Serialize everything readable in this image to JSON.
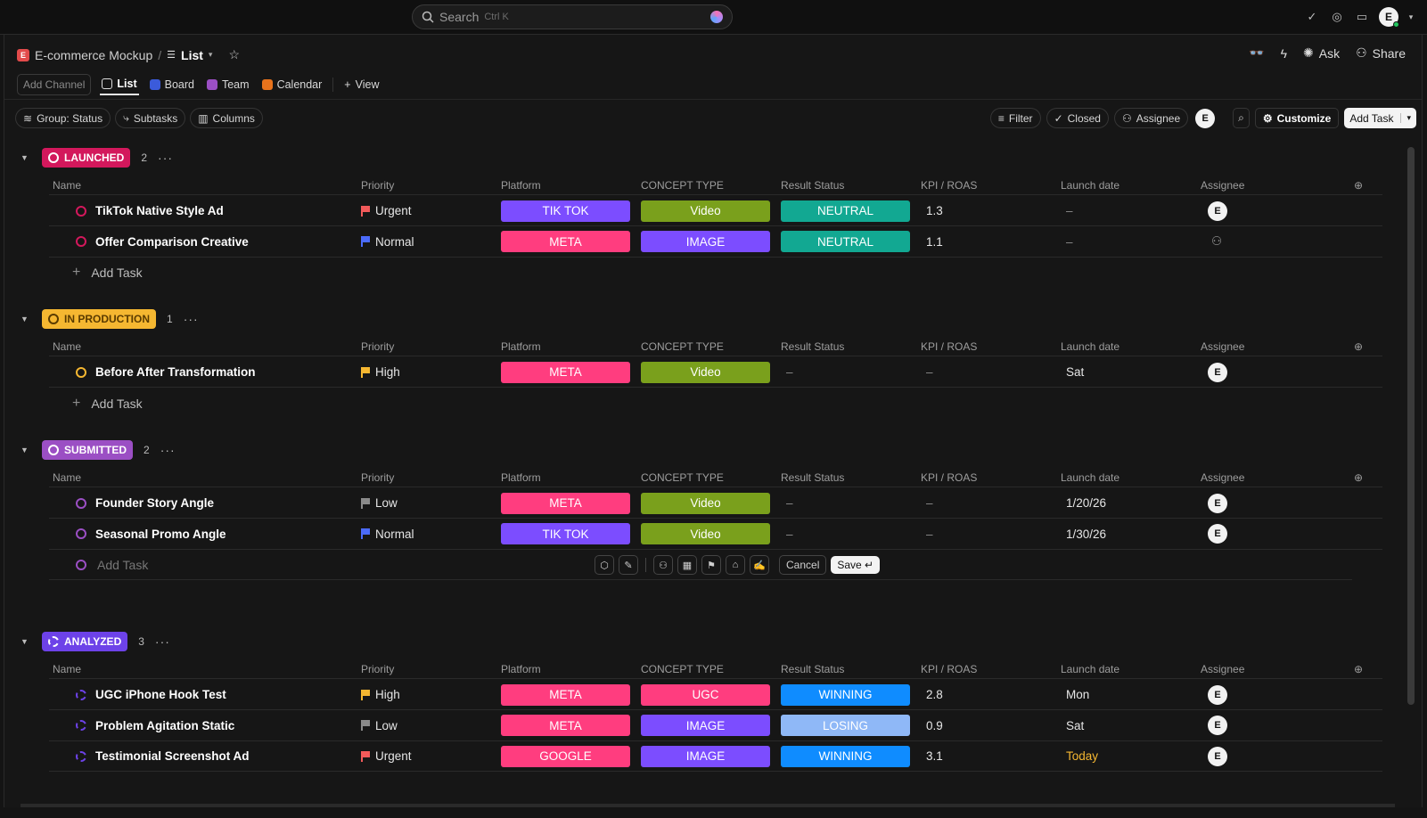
{
  "search": {
    "label": "Search",
    "shortcut": "Ctrl K"
  },
  "user": {
    "initial": "E"
  },
  "breadcrumb": {
    "space": "E-commerce Mockup",
    "space_badge": "E",
    "separator": "/",
    "view": "List"
  },
  "header_actions": {
    "ask": "Ask",
    "share": "Share"
  },
  "viewbar": {
    "add_channel": "Add Channel",
    "tabs": [
      "List",
      "Board",
      "Team",
      "Calendar"
    ],
    "add_view": "View"
  },
  "filters": {
    "group": "Group: Status",
    "subtasks": "Subtasks",
    "columns": "Columns",
    "filter": "Filter",
    "closed": "Closed",
    "assignee": "Assignee",
    "assignee_initial": "E",
    "customize": "Customize",
    "add_task": "Add Task"
  },
  "columns": [
    "Name",
    "Priority",
    "Platform",
    "CONCEPT TYPE",
    "Result Status",
    "KPI / ROAS",
    "Launch date",
    "Assignee"
  ],
  "add_task_label": "Add Task",
  "colors": {
    "launched": "#d3185c",
    "in_production": "#f5b731",
    "submitted": "#9b4fc4",
    "analyzed": "#6d42e8",
    "tiktok": "#7c4dff",
    "meta": "#ff3d7f",
    "google": "#ff3d7f",
    "video": "#7aa01c",
    "image": "#7c4dff",
    "ugc": "#ff3d7f",
    "neutral": "#12a892",
    "winning": "#0f8cff",
    "losing": "#8fb8f7"
  },
  "groups": [
    {
      "key": "launched",
      "label": "LAUNCHED",
      "count": "2",
      "tasks": [
        {
          "name": "TikTok Native Style Ad",
          "priority": "Urgent",
          "platform": "TIK TOK",
          "concept": "Video",
          "result": "NEUTRAL",
          "kpi": "1.3",
          "date": "–",
          "assignee": "E"
        },
        {
          "name": "Offer Comparison Creative",
          "priority": "Normal",
          "platform": "META",
          "concept": "IMAGE",
          "result": "NEUTRAL",
          "kpi": "1.1",
          "date": "–",
          "assignee": ""
        }
      ]
    },
    {
      "key": "in_production",
      "label": "IN PRODUCTION",
      "count": "1",
      "tasks": [
        {
          "name": "Before After Transformation",
          "priority": "High",
          "platform": "META",
          "concept": "Video",
          "result": "–",
          "kpi": "–",
          "date": "Sat",
          "assignee": "E"
        }
      ]
    },
    {
      "key": "submitted",
      "label": "SUBMITTED",
      "count": "2",
      "tasks": [
        {
          "name": "Founder Story Angle",
          "priority": "Low",
          "platform": "META",
          "concept": "Video",
          "result": "–",
          "kpi": "–",
          "date": "1/20/26",
          "assignee": "E"
        },
        {
          "name": "Seasonal Promo Angle",
          "priority": "Normal",
          "platform": "TIK TOK",
          "concept": "Video",
          "result": "–",
          "kpi": "–",
          "date": "1/30/26",
          "assignee": "E"
        }
      ]
    },
    {
      "key": "analyzed",
      "label": "ANALYZED",
      "count": "3",
      "tasks": [
        {
          "name": "UGC iPhone Hook Test",
          "priority": "High",
          "platform": "META",
          "concept": "UGC",
          "result": "WINNING",
          "kpi": "2.8",
          "date": "Mon",
          "assignee": "E"
        },
        {
          "name": "Problem Agitation Static",
          "priority": "Low",
          "platform": "META",
          "concept": "IMAGE",
          "result": "LOSING",
          "kpi": "0.9",
          "date": "Sat",
          "assignee": "E"
        },
        {
          "name": "Testimonial Screenshot Ad",
          "priority": "Urgent",
          "platform": "GOOGLE",
          "concept": "IMAGE",
          "result": "WINNING",
          "kpi": "3.1",
          "date": "Today",
          "assignee": "E"
        }
      ]
    }
  ],
  "inline_edit": {
    "cancel": "Cancel",
    "save": "Save ↵"
  }
}
